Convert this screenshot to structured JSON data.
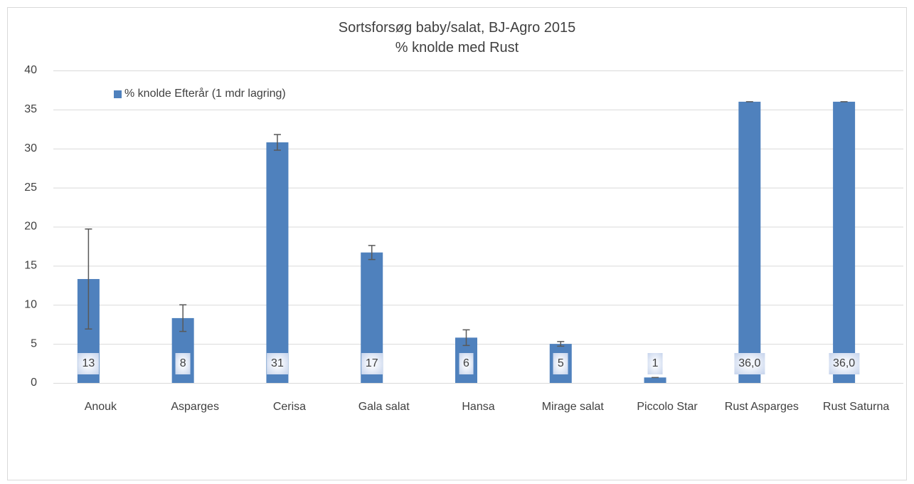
{
  "chart_data": {
    "type": "bar",
    "title": "Sortsforsøg baby/salat, BJ-Agro 2015",
    "subtitle": "% knolde med Rust",
    "categories": [
      "Anouk",
      "Asparges",
      "Cerisa",
      "Gala salat",
      "Hansa",
      "Mirage salat",
      "Piccolo Star",
      "Rust Asparges",
      "Rust Saturna"
    ],
    "series": [
      {
        "name": "% knolde Efterår (1 mdr lagring)",
        "color": "#4f81bd",
        "values": [
          13.3,
          8.3,
          30.8,
          16.7,
          5.8,
          5.0,
          0.7,
          36.0,
          36.0
        ],
        "errors": [
          6.4,
          1.7,
          1.0,
          0.9,
          1.0,
          0.3,
          0.0,
          0.0,
          0.0
        ],
        "value_labels": [
          "13",
          "8",
          "31",
          "17",
          "6",
          "5",
          "1",
          "36,0",
          "36,0"
        ]
      }
    ],
    "ylim": [
      0,
      40
    ],
    "yticks": [
      0,
      5,
      10,
      15,
      20,
      25,
      30,
      35,
      40
    ],
    "grid": true,
    "legend": "top-left"
  }
}
